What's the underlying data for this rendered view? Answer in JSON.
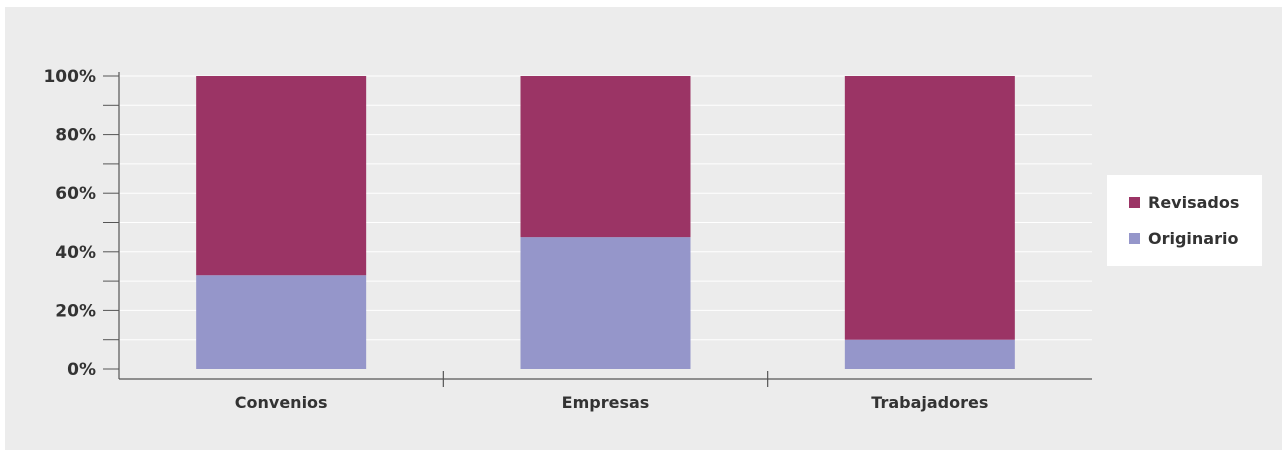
{
  "chart_data": {
    "type": "bar",
    "stacked": true,
    "categories": [
      "Convenios",
      "Empresas",
      "Trabajadores"
    ],
    "series": [
      {
        "name": "Originario",
        "values": [
          32,
          45,
          10
        ],
        "color": "#9596ca"
      },
      {
        "name": "Revisados",
        "values": [
          68,
          55,
          90
        ],
        "color": "#9b3465"
      }
    ],
    "y_tick_labels": [
      "0%",
      "20%",
      "40%",
      "60%",
      "80%",
      "100%"
    ],
    "ylim": [
      0,
      100
    ],
    "grid": true,
    "grid_color": "#ffffff",
    "background_color": "#ececec",
    "legend_position": "right",
    "legend": [
      {
        "label": "Revisados",
        "color": "#9b3465"
      },
      {
        "label": "Originario",
        "color": "#9596ca"
      }
    ]
  }
}
